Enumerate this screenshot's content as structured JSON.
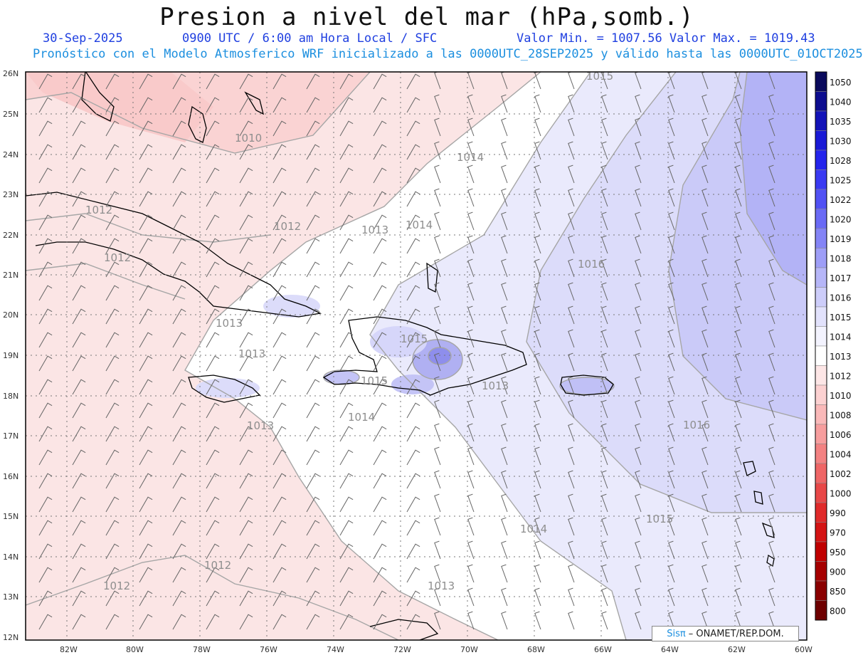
{
  "header": {
    "title": "Presion a nivel del mar (hPa,somb.)",
    "date": "30-Sep-2025",
    "time": "0900 UTC / 6:00 am Hora Local / SFC",
    "minmax": "Valor Min. = 1007.56  Valor Max. = 1019.43",
    "forecast": "Pronóstico con el Modelo Atmosferico WRF inicializado a las 0000UTC_28SEP2025 y válido hasta las  0000UTC_01OCT2025"
  },
  "axes": {
    "lat_labels": [
      "26N",
      "25N",
      "24N",
      "23N",
      "22N",
      "21N",
      "20N",
      "19N",
      "18N",
      "17N",
      "16N",
      "15N",
      "14N",
      "13N",
      "12N"
    ],
    "lon_labels": [
      "82W",
      "80W",
      "78W",
      "76W",
      "74W",
      "72W",
      "70W",
      "68W",
      "66W",
      "64W",
      "62W",
      "60W"
    ]
  },
  "contour_labels": [
    {
      "text": "1015",
      "key": "l1"
    },
    {
      "text": "1010",
      "key": "l2"
    },
    {
      "text": "1014",
      "key": "l3"
    },
    {
      "text": "1012",
      "key": "l4"
    },
    {
      "text": "1012",
      "key": "l5"
    },
    {
      "text": "1013",
      "key": "l6"
    },
    {
      "text": "1014",
      "key": "l7"
    },
    {
      "text": "1012",
      "key": "l8"
    },
    {
      "text": "1016",
      "key": "l9"
    },
    {
      "text": "1013",
      "key": "l10"
    },
    {
      "text": "1015",
      "key": "l11"
    },
    {
      "text": "1013",
      "key": "l12"
    },
    {
      "text": "1015",
      "key": "l13"
    },
    {
      "text": "1013",
      "key": "l14"
    },
    {
      "text": "1014",
      "key": "l15"
    },
    {
      "text": "1013",
      "key": "l16"
    },
    {
      "text": "1016",
      "key": "l17"
    },
    {
      "text": "1015",
      "key": "l18"
    },
    {
      "text": "1014",
      "key": "l19"
    },
    {
      "text": "1012",
      "key": "l20"
    },
    {
      "text": "1012",
      "key": "l21"
    },
    {
      "text": "1013",
      "key": "l22"
    }
  ],
  "colorbar": {
    "labels": [
      "1050",
      "1040",
      "1035",
      "1030",
      "1028",
      "1025",
      "1022",
      "1020",
      "1019",
      "1018",
      "1017",
      "1016",
      "1015",
      "1014",
      "1013",
      "1012",
      "1010",
      "1008",
      "1006",
      "1004",
      "1002",
      "1000",
      "990",
      "970",
      "950",
      "900",
      "850",
      "800"
    ],
    "colors": [
      "#0a0a5c",
      "#0d0d8f",
      "#1313b8",
      "#1a1ad6",
      "#2424ec",
      "#3a3af2",
      "#5151f4",
      "#6a6af5",
      "#8484f6",
      "#9e9ef7",
      "#b6b6f8",
      "#cdcdfa",
      "#e2e2fc",
      "#f3f3fe",
      "#ffffff",
      "#fde6e6",
      "#fcd1d1",
      "#fab9b9",
      "#f79e9e",
      "#f38282",
      "#ef6666",
      "#e84848",
      "#e02a2a",
      "#d41414",
      "#c00000",
      "#a60000",
      "#8a0000",
      "#6e0000"
    ]
  },
  "credit": {
    "logo": "Sisπ",
    "text": "– ONAMET/REP.DOM."
  }
}
